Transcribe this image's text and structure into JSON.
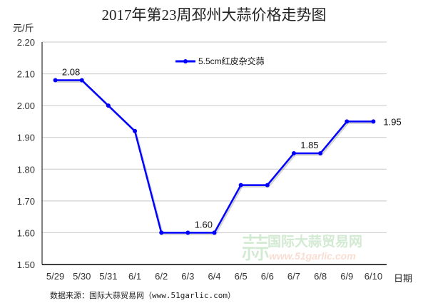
{
  "chart_data": {
    "type": "line",
    "title": "2017年第23周邳州大蒜价格走势图",
    "ylabel": "元/斤",
    "xlabel": "日期",
    "categories": [
      "5/29",
      "5/30",
      "5/31",
      "6/1",
      "6/2",
      "6/3",
      "6/4",
      "6/5",
      "6/6",
      "6/7",
      "6/8",
      "6/9",
      "6/10"
    ],
    "series": [
      {
        "name": "5.5cm红皮杂交蒜",
        "values": [
          2.08,
          2.08,
          2.0,
          1.92,
          1.6,
          1.6,
          1.6,
          1.75,
          1.75,
          1.85,
          1.85,
          1.95,
          1.95
        ],
        "color": "#0000ff"
      }
    ],
    "data_labels": [
      {
        "index": 0,
        "text": "2.08"
      },
      {
        "index": 5,
        "text": "1.60"
      },
      {
        "index": 9,
        "text": "1.85"
      },
      {
        "index": 12,
        "text": "1.95"
      }
    ],
    "ylim": [
      1.5,
      2.2
    ],
    "yticks": [
      "1.50",
      "1.60",
      "1.70",
      "1.80",
      "1.90",
      "2.00",
      "2.10",
      "2.20"
    ],
    "grid": true,
    "legend_position": "top-center"
  },
  "source": "数据来源：国际大蒜贸易网（www.51garlic.com）",
  "watermark": {
    "cn": "国际大蒜贸易网",
    "url": "www.51garlic.com",
    "glyph": "蒜"
  }
}
